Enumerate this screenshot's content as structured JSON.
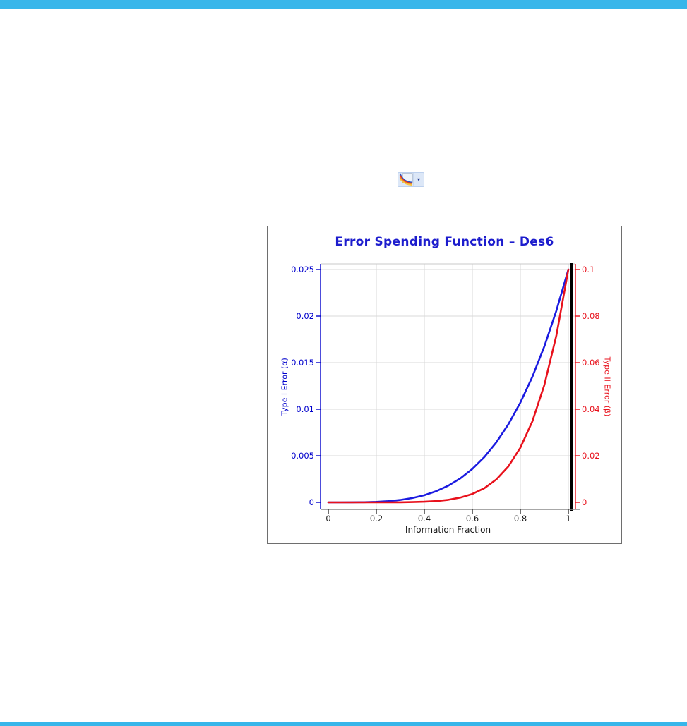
{
  "window": {
    "background": "#ffffff"
  },
  "header_bar": {
    "color": "#38b6ea"
  },
  "footer_bar": {
    "color": "#38b6ea",
    "border_color": "#1593cc"
  },
  "toolbar": {
    "plot_menu_button": {
      "icon": "spending-plot-icon",
      "dropdown_icon": "chevron-down-icon",
      "dropdown_glyph": "▾"
    }
  },
  "chart_data": {
    "type": "line",
    "title": "Error Spending Function – Des6",
    "title_color": "#1c1ccd",
    "xlabel": "Information Fraction",
    "y_left_label": "Type I Error (α)",
    "y_right_label": "Type II Error (β)",
    "x_ticks": [
      0,
      0.2,
      0.4,
      0.6,
      0.8,
      1
    ],
    "x_tick_labels": [
      "0",
      "0.2",
      "0.4",
      "0.6",
      "0.8",
      "1"
    ],
    "y_left_ticks": [
      0,
      0.005,
      0.01,
      0.015,
      0.02,
      0.025
    ],
    "y_left_tick_labels": [
      "0",
      "0.005",
      "0.01",
      "0.015",
      "0.02",
      "0.025"
    ],
    "y_right_ticks": [
      0,
      0.02,
      0.04,
      0.06,
      0.08,
      0.1
    ],
    "y_right_tick_labels": [
      "0",
      "0.02",
      "0.04",
      "0.06",
      "0.08",
      "0.1"
    ],
    "xlim": [
      0,
      1.02
    ],
    "ylim_left": [
      0,
      0.025
    ],
    "ylim_right": [
      0,
      0.1
    ],
    "grid": true,
    "legend": "none",
    "end_reference_line_t": 1.012,
    "colors": {
      "alpha_series": "#1a1ae0",
      "beta_series": "#e8111c",
      "grid": "#d9d9d9",
      "plot_top_border": "#c9c9c9",
      "x_axis": "#8a8a8a",
      "x_tick": "#333333",
      "x_text": "#1a1a1a",
      "left_axis": "#0000cc",
      "right_axis": "#e8111c",
      "end_line": "#000000"
    },
    "x": [
      0,
      0.05,
      0.1,
      0.15,
      0.2,
      0.25,
      0.3,
      0.35,
      0.4,
      0.45,
      0.5,
      0.55,
      0.6,
      0.65,
      0.7,
      0.75,
      0.8,
      0.85,
      0.9,
      0.95,
      1
    ],
    "series": [
      {
        "name": "Type I Error (α)",
        "axis": "left",
        "color": "#1a1ae0",
        "values": [
          0,
          0,
          4e-06,
          1.8e-05,
          5.5e-05,
          0.000129,
          0.000258,
          0.000463,
          0.000768,
          0.001203,
          0.001795,
          0.002578,
          0.00359,
          0.004862,
          0.006448,
          0.00838,
          0.01071,
          0.01348,
          0.01675,
          0.020573,
          0.025
        ]
      },
      {
        "name": "Type II Error (β)",
        "axis": "right",
        "color": "#e8111c",
        "values": [
          0,
          0,
          0,
          0,
          0,
          1.2e-05,
          4e-05,
          0.000109,
          0.000259,
          0.000556,
          0.001105,
          0.002051,
          0.003617,
          0.006081,
          0.009846,
          0.015412,
          0.02345,
          0.034778,
          0.050417,
          0.071651,
          0.1
        ]
      }
    ]
  }
}
